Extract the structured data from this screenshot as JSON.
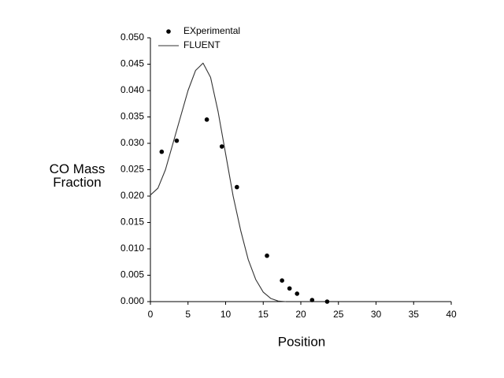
{
  "chart_data": {
    "type": "line",
    "x_label": "Position",
    "y_label": "CO Mass Fraction",
    "xlim": [
      0,
      40
    ],
    "xticks": [
      0,
      5,
      10,
      15,
      20,
      25,
      30,
      35,
      40
    ],
    "ylim": [
      0,
      0.05
    ],
    "yticks": [
      {
        "value": 0,
        "label": "0.000"
      },
      {
        "value": 0.005,
        "label": "0.005"
      },
      {
        "value": 0.01,
        "label": "0.010"
      },
      {
        "value": 0.015,
        "label": "0.015"
      },
      {
        "value": 0.02,
        "label": "0.020"
      },
      {
        "value": 0.025,
        "label": "0.025"
      },
      {
        "value": 0.03,
        "label": "0.030"
      },
      {
        "value": 0.035,
        "label": "0.035"
      },
      {
        "value": 0.04,
        "label": "0.040"
      },
      {
        "value": 0.045,
        "label": "0.045"
      },
      {
        "value": 0.05,
        "label": "0.050"
      }
    ],
    "legend": "upper left",
    "series": [
      {
        "name": "EXperimental",
        "style": "marker",
        "color": "#000000",
        "x": [
          1.5,
          3.5,
          7.5,
          9.5,
          11.5,
          15.5,
          17.5,
          18.5,
          19.5,
          21.5,
          23.5
        ],
        "values": [
          0.0284,
          0.0305,
          0.0345,
          0.0294,
          0.0217,
          0.0087,
          0.004,
          0.0025,
          0.0015,
          0.0003,
          0
        ]
      },
      {
        "name": "FLUENT",
        "style": "line",
        "color": "#333333",
        "x": [
          0,
          1,
          2,
          3,
          4,
          5,
          6,
          7,
          8,
          9,
          10,
          11,
          12,
          13,
          14,
          15,
          16,
          17,
          18
        ],
        "values": [
          0.0202,
          0.0215,
          0.025,
          0.03,
          0.035,
          0.04,
          0.0438,
          0.0452,
          0.0425,
          0.036,
          0.028,
          0.02,
          0.0135,
          0.008,
          0.0042,
          0.0018,
          0.0006,
          0.0001,
          0
        ]
      }
    ]
  }
}
